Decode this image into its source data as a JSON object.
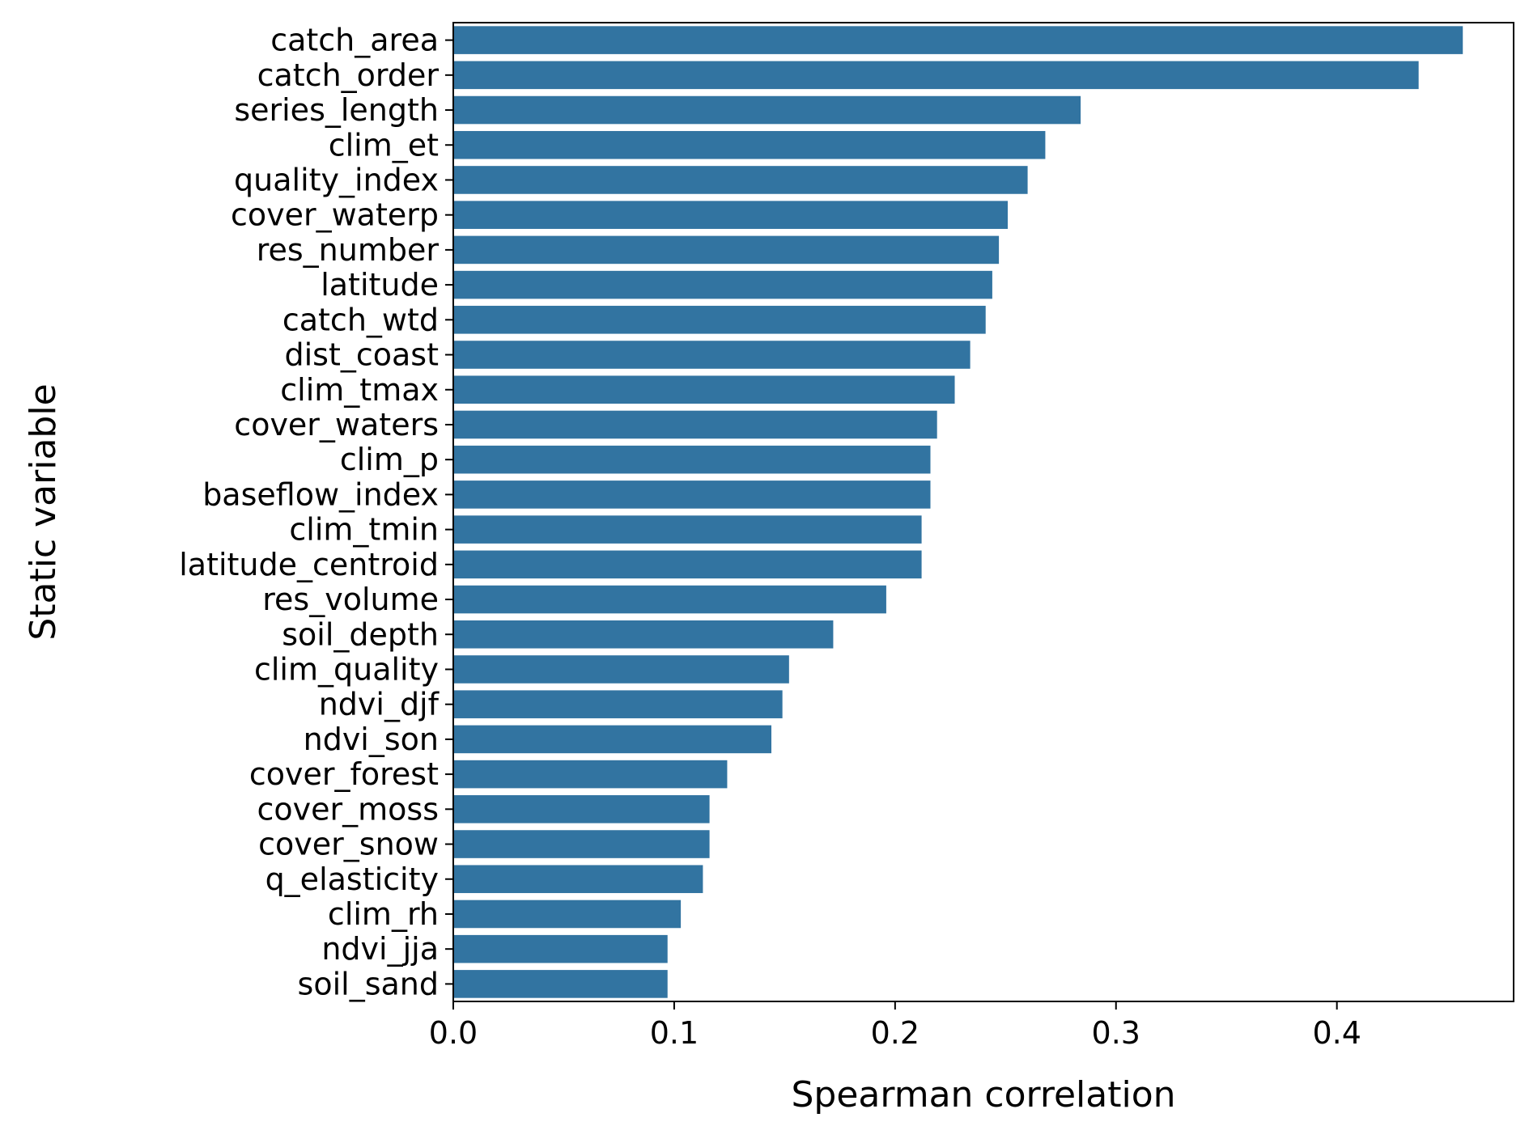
{
  "chart_data": {
    "type": "bar",
    "orientation": "horizontal",
    "xlabel": "Spearman correlation",
    "ylabel": "Static variable",
    "xlim": [
      0.0,
      0.48
    ],
    "xticks": [
      "0.0",
      "0.1",
      "0.2",
      "0.3",
      "0.4"
    ],
    "bar_color": "#3274a1",
    "grid": false,
    "categories": [
      "catch_area",
      "catch_order",
      "series_length",
      "clim_et",
      "quality_index",
      "cover_waterp",
      "res_number",
      "latitude",
      "catch_wtd",
      "dist_coast",
      "clim_tmax",
      "cover_waters",
      "clim_p",
      "baseflow_index",
      "clim_tmin",
      "latitude_centroid",
      "res_volume",
      "soil_depth",
      "clim_quality",
      "ndvi_djf",
      "ndvi_son",
      "cover_forest",
      "cover_moss",
      "cover_snow",
      "q_elasticity",
      "clim_rh",
      "ndvi_jja",
      "soil_sand"
    ],
    "values": [
      0.457,
      0.437,
      0.284,
      0.268,
      0.26,
      0.251,
      0.247,
      0.244,
      0.241,
      0.234,
      0.227,
      0.219,
      0.216,
      0.216,
      0.212,
      0.212,
      0.196,
      0.172,
      0.152,
      0.149,
      0.144,
      0.124,
      0.116,
      0.116,
      0.113,
      0.103,
      0.097,
      0.097
    ]
  }
}
